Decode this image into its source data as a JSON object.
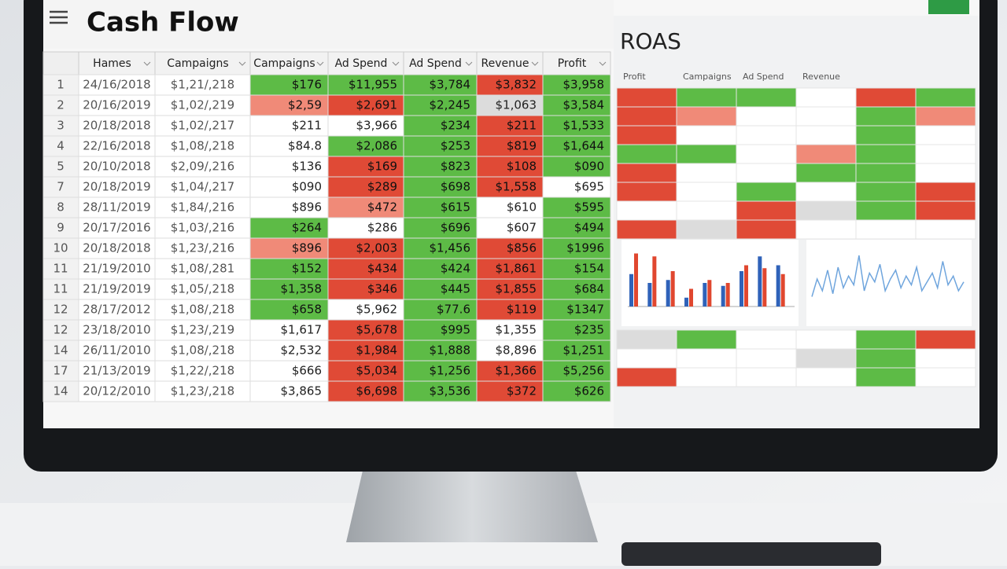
{
  "header": {
    "title": "Cash Flow",
    "panel_title": "ROAS"
  },
  "palette": {
    "g": "#5dbb46",
    "r": "#e04a36",
    "lr": "#f08a78",
    "w": "#ffffff",
    "gray": "#dcdcdc"
  },
  "table": {
    "columns": [
      "Hames",
      "Campaigns",
      "Campaigns",
      "Ad Spend",
      "Ad Spend",
      "Revenue",
      "Profit"
    ],
    "row_numbers": [
      "1",
      "2",
      "3",
      "4",
      "5",
      "7",
      "8",
      "9",
      "10",
      "11",
      "11",
      "12",
      "12",
      "14",
      "17",
      "14"
    ],
    "rows": [
      [
        "24/16/2018",
        "$1,21/,218",
        "$176",
        "$11,955",
        "$3,784",
        "$3,832",
        "$3,958"
      ],
      [
        "20/16/2019",
        "$1,02/,219",
        "$2,59",
        "$2,691",
        "$2,245",
        "$1,063",
        "$3,584"
      ],
      [
        "20/18/2018",
        "$1,02/,217",
        "$211",
        "$3,966",
        "$234",
        "$211",
        "$1,533"
      ],
      [
        "22/16/2018",
        "$1,08/,218",
        "$84.8",
        "$2,086",
        "$253",
        "$819",
        "$1,644"
      ],
      [
        "20/10/2018",
        "$2,09/,216",
        "$136",
        "$169",
        "$823",
        "$108",
        "$090"
      ],
      [
        "20/18/2019",
        "$1,04/,217",
        "$090",
        "$289",
        "$698",
        "$1,558",
        "$695"
      ],
      [
        "28/11/2019",
        "$1,84/,216",
        "$896",
        "$472",
        "$615",
        "$610",
        "$595"
      ],
      [
        "20/17/2016",
        "$1,03/,216",
        "$264",
        "$286",
        "$696",
        "$607",
        "$494"
      ],
      [
        "20/18/2018",
        "$1,23/,216",
        "$896",
        "$2,003",
        "$1,456",
        "$856",
        "$1996"
      ],
      [
        "21/19/2010",
        "$1,08/,281",
        "$152",
        "$434",
        "$424",
        "$1,861",
        "$154"
      ],
      [
        "21/19/2019",
        "$1,05/,218",
        "$1,358",
        "$346",
        "$445",
        "$1,855",
        "$684"
      ],
      [
        "28/17/2012",
        "$1,08/,218",
        "$658",
        "$5,962",
        "$77.6",
        "$119",
        "$1347"
      ],
      [
        "23/18/2010",
        "$1,23/,219",
        "$1,617",
        "$5,678",
        "$995",
        "$1,355",
        "$235"
      ],
      [
        "26/11/2010",
        "$1,08/,218",
        "$2,532",
        "$1,984",
        "$1,888",
        "$8,896",
        "$1,251"
      ],
      [
        "21/13/2019",
        "$1,22/,218",
        "$666",
        "$5,034",
        "$1,256",
        "$1,366",
        "$5,256"
      ],
      [
        "20/12/2010",
        "$1,23/,218",
        "$3,865",
        "$6,698",
        "$3,536",
        "$372",
        "$626"
      ]
    ],
    "colors": [
      [
        "w",
        "w",
        "g",
        "g",
        "g",
        "r",
        "g"
      ],
      [
        "w",
        "w",
        "lr",
        "r",
        "g",
        "gray",
        "g"
      ],
      [
        "w",
        "w",
        "w",
        "w",
        "g",
        "r",
        "g"
      ],
      [
        "w",
        "w",
        "w",
        "g",
        "g",
        "r",
        "g"
      ],
      [
        "w",
        "w",
        "w",
        "r",
        "g",
        "r",
        "g"
      ],
      [
        "w",
        "w",
        "w",
        "r",
        "g",
        "r",
        "w"
      ],
      [
        "w",
        "w",
        "w",
        "lr",
        "g",
        "w",
        "g"
      ],
      [
        "w",
        "w",
        "g",
        "w",
        "g",
        "w",
        "g"
      ],
      [
        "w",
        "w",
        "lr",
        "r",
        "g",
        "r",
        "g"
      ],
      [
        "w",
        "w",
        "g",
        "r",
        "g",
        "r",
        "g"
      ],
      [
        "w",
        "w",
        "g",
        "r",
        "g",
        "r",
        "g"
      ],
      [
        "w",
        "w",
        "g",
        "w",
        "g",
        "r",
        "g"
      ],
      [
        "w",
        "w",
        "w",
        "r",
        "g",
        "w",
        "g"
      ],
      [
        "w",
        "w",
        "w",
        "r",
        "g",
        "w",
        "g"
      ],
      [
        "w",
        "w",
        "w",
        "r",
        "g",
        "r",
        "g"
      ],
      [
        "w",
        "w",
        "w",
        "r",
        "g",
        "r",
        "g"
      ]
    ]
  },
  "roas": {
    "columns": [
      "Profit",
      "Campaigns",
      "Ad Spend",
      "Revenue"
    ],
    "grid_colors": [
      [
        "r",
        "g",
        "g",
        "w",
        "r",
        "g"
      ],
      [
        "r",
        "lr",
        "w",
        "w",
        "g",
        "lr"
      ],
      [
        "r",
        "w",
        "w",
        "w",
        "g",
        "w"
      ],
      [
        "g",
        "g",
        "w",
        "lr",
        "g",
        "w"
      ],
      [
        "r",
        "w",
        "w",
        "g",
        "g",
        "w"
      ],
      [
        "r",
        "w",
        "g",
        "w",
        "g",
        "r"
      ],
      [
        "w",
        "w",
        "r",
        "gray",
        "g",
        "r"
      ],
      [
        "r",
        "gray",
        "r",
        "w",
        "w",
        "w"
      ]
    ],
    "bottom_colors": [
      [
        "gray",
        "g",
        "w",
        "w",
        "g",
        "r"
      ],
      [
        "w",
        "w",
        "w",
        "gray",
        "g",
        "w"
      ],
      [
        "r",
        "w",
        "w",
        "w",
        "g",
        "w"
      ]
    ],
    "bar_chart": {
      "type": "bar",
      "ylim": [
        0,
        100
      ],
      "series": [
        {
          "color": "#2f62b9",
          "values": [
            55,
            40,
            45,
            15,
            40,
            35,
            60,
            85,
            70
          ]
        },
        {
          "color": "#e0472f",
          "values": [
            90,
            85,
            60,
            30,
            45,
            40,
            70,
            65,
            55
          ]
        }
      ]
    },
    "line_chart": {
      "type": "line",
      "ylim": [
        0,
        100
      ],
      "color": "#6fa5dd",
      "values": [
        10,
        40,
        20,
        55,
        15,
        60,
        25,
        45,
        30,
        80,
        20,
        50,
        35,
        65,
        20,
        40,
        55,
        25,
        45,
        30,
        60,
        20,
        35,
        50,
        25,
        70,
        30,
        45,
        20,
        35
      ]
    }
  }
}
